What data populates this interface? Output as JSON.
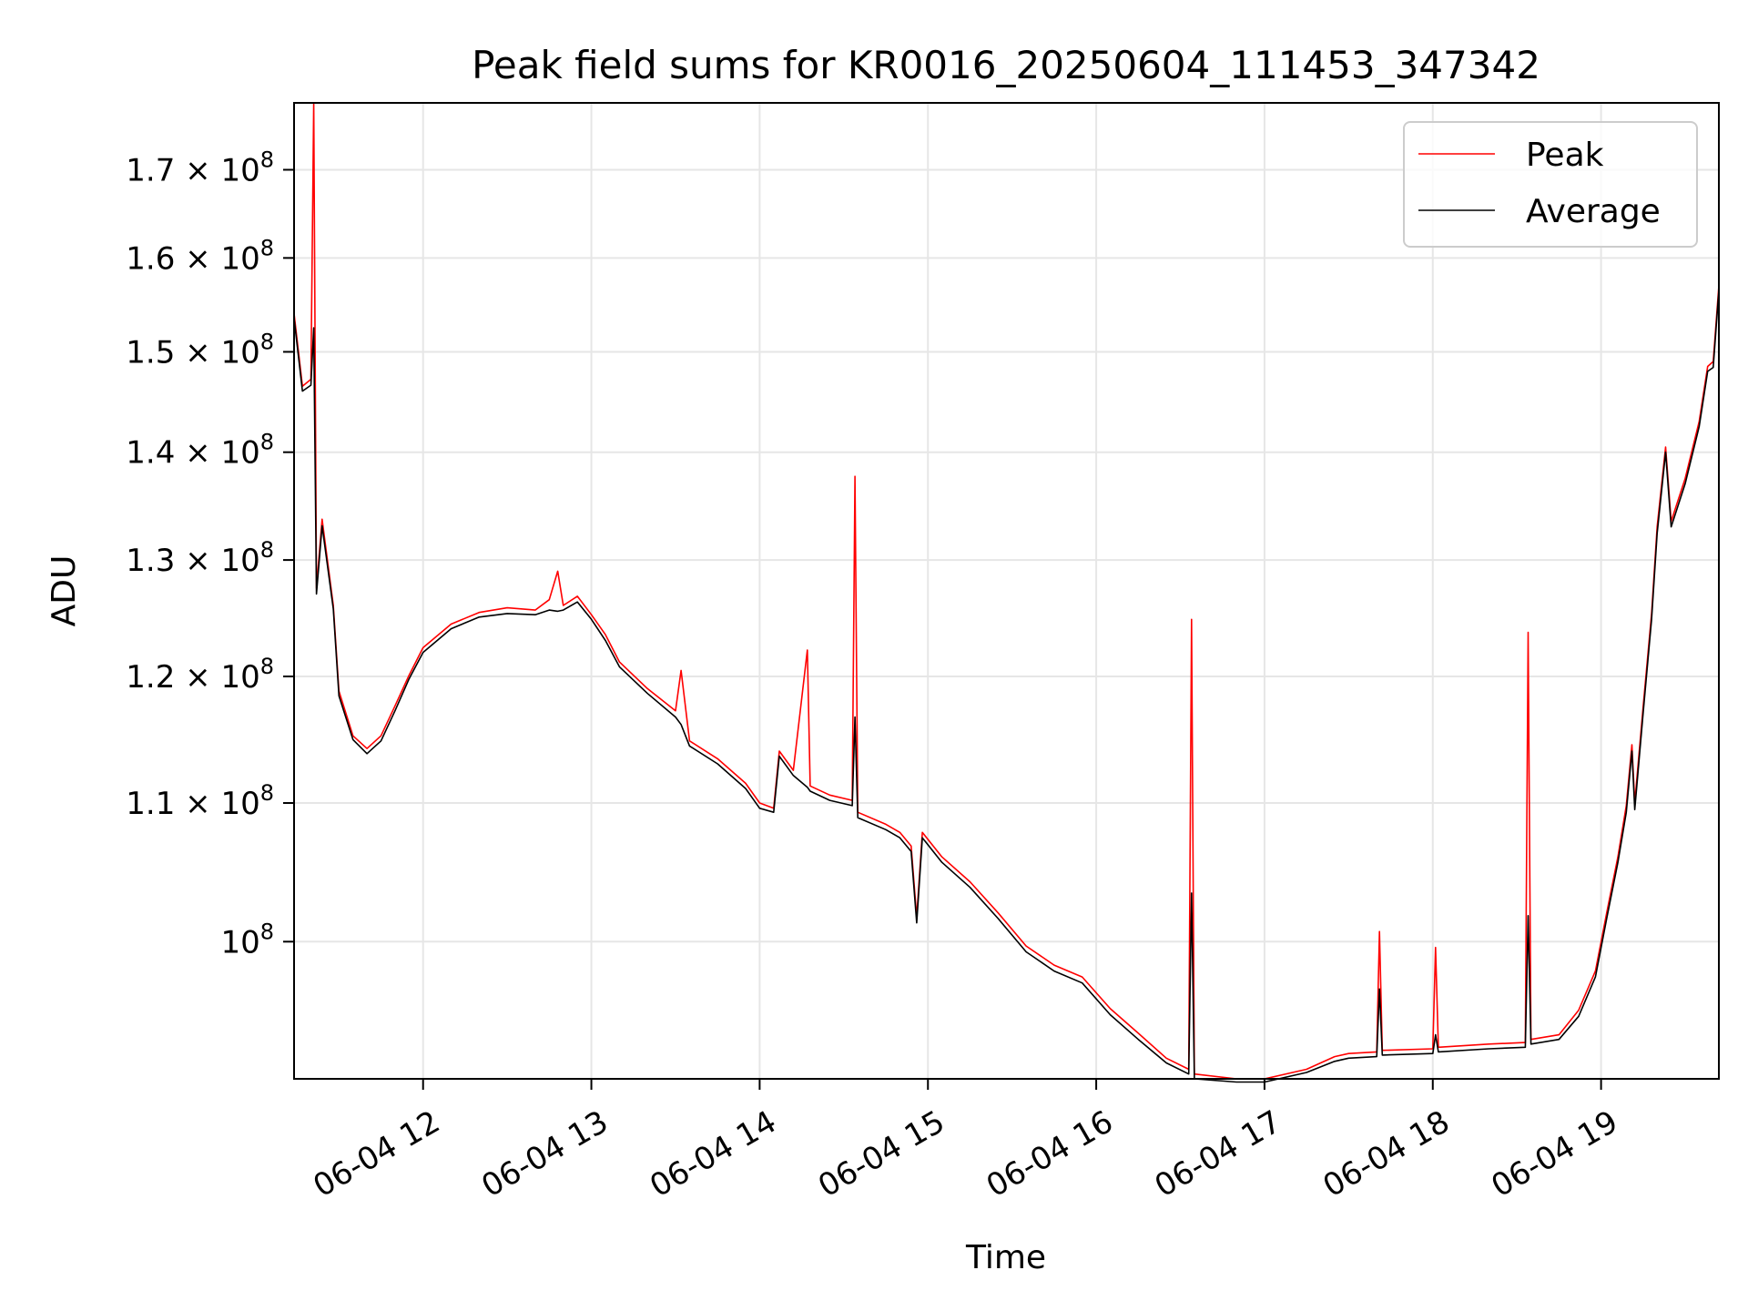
{
  "chart_data": {
    "type": "line",
    "title": "Peak field sums for KR0016_20250604_111453_347342",
    "xlabel": "Time",
    "ylabel": "ADU",
    "yscale": "log",
    "ylim": [
      91000000,
      178000000
    ],
    "xlim": [
      "06-04 11:14",
      "06-04 19:42"
    ],
    "grid": true,
    "legend_position": "top-right",
    "x_tick_labels": [
      "06-04 12",
      "06-04 13",
      "06-04 14",
      "06-04 15",
      "06-04 16",
      "06-04 17",
      "06-04 18",
      "06-04 19"
    ],
    "x_ticks": [
      "06-04 12:00",
      "06-04 13:00",
      "06-04 14:00",
      "06-04 15:00",
      "06-04 16:00",
      "06-04 17:00",
      "06-04 18:00",
      "06-04 19:00"
    ],
    "y_tick_labels": [
      {
        "value": 100000000,
        "mant": "",
        "exp": "8"
      },
      {
        "value": 110000000,
        "mant": "1.1",
        "exp": "8"
      },
      {
        "value": 120000000,
        "mant": "1.2",
        "exp": "8"
      },
      {
        "value": 130000000,
        "mant": "1.3",
        "exp": "8"
      },
      {
        "value": 140000000,
        "mant": "1.4",
        "exp": "8"
      },
      {
        "value": 150000000,
        "mant": "1.5",
        "exp": "8"
      },
      {
        "value": 160000000,
        "mant": "1.6",
        "exp": "8"
      },
      {
        "value": 170000000,
        "mant": "1.7",
        "exp": "8"
      }
    ],
    "series": [
      {
        "name": "Peak",
        "color": "#ff0000",
        "points": [
          [
            "06-04 11:14",
            154000000
          ],
          [
            "06-04 11:17",
            146500000
          ],
          [
            "06-04 11:20",
            147200000
          ],
          [
            "06-04 11:21",
            178000000
          ],
          [
            "06-04 11:22",
            127500000
          ],
          [
            "06-04 11:24",
            133700000
          ],
          [
            "06-04 11:28",
            126000000
          ],
          [
            "06-04 11:30",
            118800000
          ],
          [
            "06-04 11:35",
            115200000
          ],
          [
            "06-04 11:40",
            114200000
          ],
          [
            "06-04 11:45",
            115200000
          ],
          [
            "06-04 11:50",
            117600000
          ],
          [
            "06-04 11:55",
            120100000
          ],
          [
            "06-04 12:00",
            122400000
          ],
          [
            "06-04 12:10",
            124400000
          ],
          [
            "06-04 12:20",
            125400000
          ],
          [
            "06-04 12:30",
            125800000
          ],
          [
            "06-04 12:40",
            125600000
          ],
          [
            "06-04 12:45",
            126500000
          ],
          [
            "06-04 12:48",
            129000000
          ],
          [
            "06-04 12:50",
            126000000
          ],
          [
            "06-04 12:55",
            126800000
          ],
          [
            "06-04 13:00",
            125200000
          ],
          [
            "06-04 13:05",
            123500000
          ],
          [
            "06-04 13:10",
            121200000
          ],
          [
            "06-04 13:20",
            119000000
          ],
          [
            "06-04 13:30",
            117200000
          ],
          [
            "06-04 13:32",
            120500000
          ],
          [
            "06-04 13:35",
            114800000
          ],
          [
            "06-04 13:45",
            113400000
          ],
          [
            "06-04 13:55",
            111500000
          ],
          [
            "06-04 14:00",
            110000000
          ],
          [
            "06-04 14:05",
            109600000
          ],
          [
            "06-04 14:07",
            114000000
          ],
          [
            "06-04 14:12",
            112500000
          ],
          [
            "06-04 14:17",
            122200000
          ],
          [
            "06-04 14:18",
            111300000
          ],
          [
            "06-04 14:25",
            110600000
          ],
          [
            "06-04 14:33",
            110200000
          ],
          [
            "06-04 14:34",
            137700000
          ],
          [
            "06-04 14:35",
            109300000
          ],
          [
            "06-04 14:45",
            108400000
          ],
          [
            "06-04 14:50",
            107800000
          ],
          [
            "06-04 14:54",
            106800000
          ],
          [
            "06-04 14:56",
            101700000
          ],
          [
            "06-04 14:58",
            107800000
          ],
          [
            "06-04 15:05",
            106000000
          ],
          [
            "06-04 15:15",
            104200000
          ],
          [
            "06-04 15:25",
            102000000
          ],
          [
            "06-04 15:35",
            99700000
          ],
          [
            "06-04 15:45",
            98400000
          ],
          [
            "06-04 15:55",
            97600000
          ],
          [
            "06-04 16:05",
            95500000
          ],
          [
            "06-04 16:15",
            93900000
          ],
          [
            "06-04 16:25",
            92300000
          ],
          [
            "06-04 16:33",
            91600000
          ],
          [
            "06-04 16:34",
            124800000
          ],
          [
            "06-04 16:35",
            91300000
          ],
          [
            "06-04 16:50",
            91000000
          ],
          [
            "06-04 17:00",
            91000000
          ],
          [
            "06-04 17:15",
            91600000
          ],
          [
            "06-04 17:25",
            92400000
          ],
          [
            "06-04 17:30",
            92600000
          ],
          [
            "06-04 17:40",
            92700000
          ],
          [
            "06-04 17:41",
            100700000
          ],
          [
            "06-04 17:42",
            92800000
          ],
          [
            "06-04 18:00",
            92900000
          ],
          [
            "06-04 18:01",
            99600000
          ],
          [
            "06-04 18:02",
            93000000
          ],
          [
            "06-04 18:20",
            93200000
          ],
          [
            "06-04 18:33",
            93300000
          ],
          [
            "06-04 18:34",
            123700000
          ],
          [
            "06-04 18:35",
            93500000
          ],
          [
            "06-04 18:45",
            93800000
          ],
          [
            "06-04 18:52",
            95400000
          ],
          [
            "06-04 18:58",
            98000000
          ],
          [
            "06-04 19:02",
            102000000
          ],
          [
            "06-04 19:06",
            106000000
          ],
          [
            "06-04 19:09",
            109800000
          ],
          [
            "06-04 19:11",
            114500000
          ],
          [
            "06-04 19:12",
            110000000
          ],
          [
            "06-04 19:15",
            117500000
          ],
          [
            "06-04 19:18",
            125300000
          ],
          [
            "06-04 19:20",
            133000000
          ],
          [
            "06-04 19:23",
            140500000
          ],
          [
            "06-04 19:25",
            133500000
          ],
          [
            "06-04 19:30",
            137500000
          ],
          [
            "06-04 19:35",
            143000000
          ],
          [
            "06-04 19:38",
            148500000
          ],
          [
            "06-04 19:40",
            149000000
          ],
          [
            "06-04 19:42",
            157000000
          ]
        ]
      },
      {
        "name": "Average",
        "color": "#000000",
        "points": [
          [
            "06-04 11:14",
            153500000
          ],
          [
            "06-04 11:17",
            146000000
          ],
          [
            "06-04 11:20",
            146600000
          ],
          [
            "06-04 11:21",
            152500000
          ],
          [
            "06-04 11:22",
            127000000
          ],
          [
            "06-04 11:24",
            133100000
          ],
          [
            "06-04 11:28",
            125700000
          ],
          [
            "06-04 11:30",
            118400000
          ],
          [
            "06-04 11:35",
            114900000
          ],
          [
            "06-04 11:40",
            113800000
          ],
          [
            "06-04 11:45",
            114800000
          ],
          [
            "06-04 11:50",
            117200000
          ],
          [
            "06-04 11:55",
            119800000
          ],
          [
            "06-04 12:00",
            122000000
          ],
          [
            "06-04 12:10",
            124000000
          ],
          [
            "06-04 12:20",
            125000000
          ],
          [
            "06-04 12:30",
            125300000
          ],
          [
            "06-04 12:40",
            125200000
          ],
          [
            "06-04 12:45",
            125600000
          ],
          [
            "06-04 12:48",
            125500000
          ],
          [
            "06-04 12:50",
            125600000
          ],
          [
            "06-04 12:55",
            126300000
          ],
          [
            "06-04 13:00",
            124800000
          ],
          [
            "06-04 13:05",
            123000000
          ],
          [
            "06-04 13:10",
            120800000
          ],
          [
            "06-04 13:20",
            118600000
          ],
          [
            "06-04 13:30",
            116700000
          ],
          [
            "06-04 13:32",
            116100000
          ],
          [
            "06-04 13:35",
            114400000
          ],
          [
            "06-04 13:45",
            113000000
          ],
          [
            "06-04 13:55",
            111100000
          ],
          [
            "06-04 14:00",
            109600000
          ],
          [
            "06-04 14:05",
            109300000
          ],
          [
            "06-04 14:07",
            113600000
          ],
          [
            "06-04 14:12",
            112100000
          ],
          [
            "06-04 14:17",
            111200000
          ],
          [
            "06-04 14:18",
            110900000
          ],
          [
            "06-04 14:25",
            110200000
          ],
          [
            "06-04 14:33",
            109800000
          ],
          [
            "06-04 14:34",
            116700000
          ],
          [
            "06-04 14:35",
            108900000
          ],
          [
            "06-04 14:45",
            108000000
          ],
          [
            "06-04 14:50",
            107400000
          ],
          [
            "06-04 14:54",
            106400000
          ],
          [
            "06-04 14:56",
            101300000
          ],
          [
            "06-04 14:58",
            107400000
          ],
          [
            "06-04 15:05",
            105600000
          ],
          [
            "06-04 15:15",
            103800000
          ],
          [
            "06-04 15:25",
            101600000
          ],
          [
            "06-04 15:35",
            99300000
          ],
          [
            "06-04 15:45",
            98000000
          ],
          [
            "06-04 15:55",
            97200000
          ],
          [
            "06-04 16:05",
            95100000
          ],
          [
            "06-04 16:15",
            93500000
          ],
          [
            "06-04 16:25",
            92000000
          ],
          [
            "06-04 16:33",
            91300000
          ],
          [
            "06-04 16:34",
            103400000
          ],
          [
            "06-04 16:35",
            91000000
          ],
          [
            "06-04 16:50",
            90800000
          ],
          [
            "06-04 17:00",
            90800000
          ],
          [
            "06-04 17:15",
            91400000
          ],
          [
            "06-04 17:25",
            92100000
          ],
          [
            "06-04 17:30",
            92300000
          ],
          [
            "06-04 17:40",
            92400000
          ],
          [
            "06-04 17:41",
            96800000
          ],
          [
            "06-04 17:42",
            92500000
          ],
          [
            "06-04 18:00",
            92600000
          ],
          [
            "06-04 18:01",
            93800000
          ],
          [
            "06-04 18:02",
            92700000
          ],
          [
            "06-04 18:20",
            92900000
          ],
          [
            "06-04 18:33",
            93000000
          ],
          [
            "06-04 18:34",
            101800000
          ],
          [
            "06-04 18:35",
            93200000
          ],
          [
            "06-04 18:45",
            93500000
          ],
          [
            "06-04 18:52",
            95000000
          ],
          [
            "06-04 18:58",
            97600000
          ],
          [
            "06-04 19:02",
            101600000
          ],
          [
            "06-04 19:06",
            105600000
          ],
          [
            "06-04 19:09",
            109300000
          ],
          [
            "06-04 19:11",
            114000000
          ],
          [
            "06-04 19:12",
            109500000
          ],
          [
            "06-04 19:15",
            117000000
          ],
          [
            "06-04 19:18",
            124800000
          ],
          [
            "06-04 19:20",
            132400000
          ],
          [
            "06-04 19:23",
            140000000
          ],
          [
            "06-04 19:25",
            133000000
          ],
          [
            "06-04 19:30",
            137000000
          ],
          [
            "06-04 19:35",
            142500000
          ],
          [
            "06-04 19:38",
            148000000
          ],
          [
            "06-04 19:40",
            148400000
          ],
          [
            "06-04 19:42",
            156500000
          ]
        ]
      }
    ]
  }
}
